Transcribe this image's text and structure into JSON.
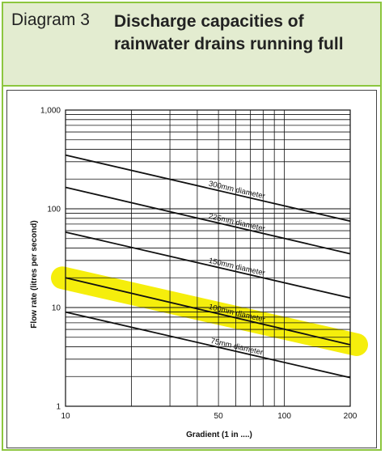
{
  "header": {
    "label": "Diagram 3",
    "title": "Discharge capacities of rainwater drains running full"
  },
  "chart_data": {
    "type": "line",
    "xscale": "log",
    "yscale": "log",
    "xlim": [
      10,
      200
    ],
    "ylim": [
      1,
      1000
    ],
    "xticks": [
      10,
      50,
      100,
      200
    ],
    "xtick_labels": [
      "10",
      "50",
      "100",
      "200"
    ],
    "yticks": [
      1,
      10,
      100,
      1000
    ],
    "ytick_labels": [
      "1",
      "10",
      "100",
      "1,000"
    ],
    "xlabel": "Gradient (1 in ....)",
    "ylabel": "Flow rate (litres per second)",
    "grid": true,
    "series": [
      {
        "name": "300mm diameter",
        "x": [
          10,
          200
        ],
        "y": [
          350,
          75
        ]
      },
      {
        "name": "225mm diameter",
        "x": [
          10,
          200
        ],
        "y": [
          165,
          35
        ]
      },
      {
        "name": "150mm diameter",
        "x": [
          10,
          200
        ],
        "y": [
          58,
          12.5
        ]
      },
      {
        "name": "100mm diameter",
        "x": [
          10,
          200
        ],
        "y": [
          20,
          4.2
        ]
      },
      {
        "name": "75mm diameter",
        "x": [
          10,
          200
        ],
        "y": [
          9,
          1.95
        ]
      }
    ],
    "highlight": {
      "series": "100mm diameter",
      "color": "#f5ee00"
    },
    "line_color": "#111111",
    "grid_color": "#111111"
  }
}
